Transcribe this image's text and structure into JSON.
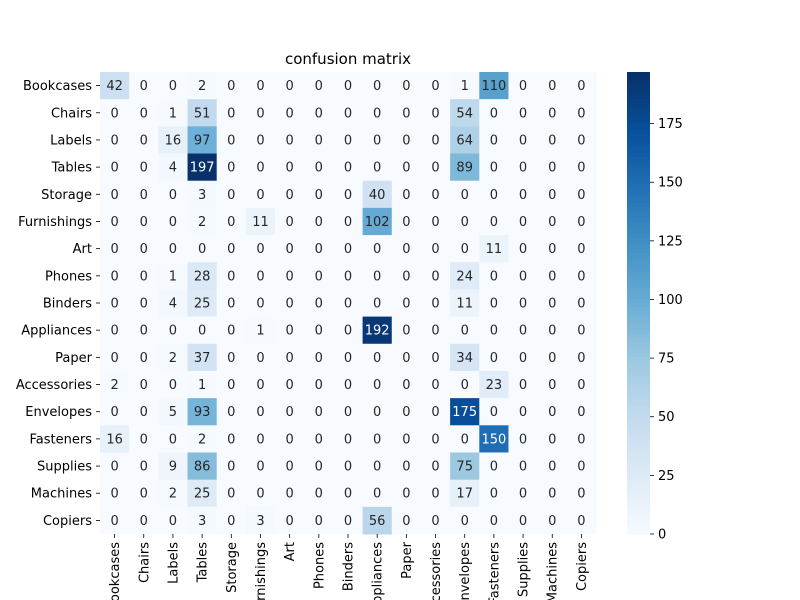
{
  "chart_data": {
    "type": "heatmap",
    "title": "confusion matrix",
    "row_labels": [
      "Bookcases",
      "Chairs",
      "Labels",
      "Tables",
      "Storage",
      "Furnishings",
      "Art",
      "Phones",
      "Binders",
      "Appliances",
      "Paper",
      "Accessories",
      "Envelopes",
      "Fasteners",
      "Supplies",
      "Machines",
      "Copiers"
    ],
    "col_labels": [
      "Bookcases",
      "Chairs",
      "Labels",
      "Tables",
      "Storage",
      "Furnishings",
      "Art",
      "Phones",
      "Binders",
      "Appliances",
      "Paper",
      "Accessories",
      "Envelopes",
      "Fasteners",
      "Supplies",
      "Machines",
      "Copiers"
    ],
    "values": [
      [
        42,
        0,
        0,
        2,
        0,
        0,
        0,
        0,
        0,
        0,
        0,
        0,
        1,
        110,
        0,
        0,
        0
      ],
      [
        0,
        0,
        1,
        51,
        0,
        0,
        0,
        0,
        0,
        0,
        0,
        0,
        54,
        0,
        0,
        0,
        0
      ],
      [
        0,
        0,
        16,
        97,
        0,
        0,
        0,
        0,
        0,
        0,
        0,
        0,
        64,
        0,
        0,
        0,
        0
      ],
      [
        0,
        0,
        4,
        197,
        0,
        0,
        0,
        0,
        0,
        0,
        0,
        0,
        89,
        0,
        0,
        0,
        0
      ],
      [
        0,
        0,
        0,
        3,
        0,
        0,
        0,
        0,
        0,
        40,
        0,
        0,
        0,
        0,
        0,
        0,
        0
      ],
      [
        0,
        0,
        0,
        2,
        0,
        11,
        0,
        0,
        0,
        102,
        0,
        0,
        0,
        0,
        0,
        0,
        0
      ],
      [
        0,
        0,
        0,
        0,
        0,
        0,
        0,
        0,
        0,
        0,
        0,
        0,
        0,
        11,
        0,
        0,
        0
      ],
      [
        0,
        0,
        1,
        28,
        0,
        0,
        0,
        0,
        0,
        0,
        0,
        0,
        24,
        0,
        0,
        0,
        0
      ],
      [
        0,
        0,
        4,
        25,
        0,
        0,
        0,
        0,
        0,
        0,
        0,
        0,
        11,
        0,
        0,
        0,
        0
      ],
      [
        0,
        0,
        0,
        0,
        0,
        1,
        0,
        0,
        0,
        192,
        0,
        0,
        0,
        0,
        0,
        0,
        0
      ],
      [
        0,
        0,
        2,
        37,
        0,
        0,
        0,
        0,
        0,
        0,
        0,
        0,
        34,
        0,
        0,
        0,
        0
      ],
      [
        2,
        0,
        0,
        1,
        0,
        0,
        0,
        0,
        0,
        0,
        0,
        0,
        0,
        23,
        0,
        0,
        0
      ],
      [
        0,
        0,
        5,
        93,
        0,
        0,
        0,
        0,
        0,
        0,
        0,
        0,
        175,
        0,
        0,
        0,
        0
      ],
      [
        16,
        0,
        0,
        2,
        0,
        0,
        0,
        0,
        0,
        0,
        0,
        0,
        0,
        150,
        0,
        0,
        0
      ],
      [
        0,
        0,
        9,
        86,
        0,
        0,
        0,
        0,
        0,
        0,
        0,
        0,
        75,
        0,
        0,
        0,
        0
      ],
      [
        0,
        0,
        2,
        25,
        0,
        0,
        0,
        0,
        0,
        0,
        0,
        0,
        17,
        0,
        0,
        0,
        0
      ],
      [
        0,
        0,
        0,
        3,
        0,
        3,
        0,
        0,
        0,
        56,
        0,
        0,
        0,
        0,
        0,
        0,
        0
      ]
    ],
    "colorbar": {
      "min": 0,
      "max": 197,
      "ticks": [
        0,
        25,
        50,
        75,
        100,
        125,
        150,
        175
      ]
    },
    "colormap": "Blues",
    "colors": {
      "low": "#f7fbff",
      "high": "#08306b",
      "text_dark": "#262626",
      "text_light": "#ffffff"
    }
  }
}
